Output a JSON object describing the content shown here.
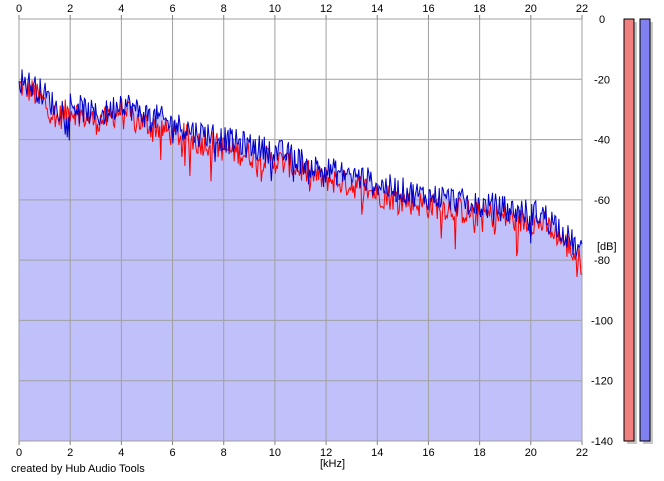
{
  "credit": "created by Hub Audio Tools",
  "chart_data": {
    "type": "area",
    "xlabel": "[kHz]",
    "ylabel": "[dB]",
    "xlim": [
      0,
      22
    ],
    "ylim": [
      -140,
      0
    ],
    "grid": true,
    "x_ticks": [
      0,
      2,
      4,
      6,
      8,
      10,
      12,
      14,
      16,
      18,
      20,
      22
    ],
    "y_ticks": [
      0,
      -20,
      -40,
      -60,
      -80,
      -100,
      -120,
      -140
    ],
    "colors": {
      "fill": "#c0c0fb",
      "left_channel": "#ff0000",
      "right_channel": "#0000cc",
      "meter_left": "#f08080",
      "meter_right": "#8080f0",
      "grid": "#a0a0a0"
    },
    "series": [
      {
        "color": "red",
        "x": [
          0,
          0.5,
          1,
          1.5,
          2,
          2.5,
          3,
          3.5,
          4,
          4.5,
          5,
          5.5,
          6,
          6.5,
          7,
          7.5,
          8,
          8.5,
          9,
          9.5,
          10,
          10.5,
          11,
          11.5,
          12,
          12.5,
          13,
          13.5,
          14,
          14.5,
          15,
          15.5,
          16,
          16.5,
          17,
          17.5,
          18,
          18.5,
          19,
          19.5,
          20,
          20.5,
          21,
          21.5,
          22
        ],
        "values": [
          -22,
          -24,
          -28,
          -33,
          -30,
          -32,
          -34,
          -33,
          -30,
          -33,
          -35,
          -36,
          -38,
          -39,
          -41,
          -41,
          -43,
          -44,
          -45,
          -46,
          -47,
          -48,
          -50,
          -52,
          -53,
          -54,
          -55,
          -56,
          -58,
          -59,
          -60,
          -61,
          -62,
          -62,
          -63,
          -64,
          -65,
          -65,
          -66,
          -67,
          -67,
          -68,
          -71,
          -76,
          -81
        ]
      },
      {
        "color": "blue",
        "x": [
          0,
          0.5,
          1,
          1.5,
          2,
          2.5,
          3,
          3.5,
          4,
          4.5,
          5,
          5.5,
          6,
          6.5,
          7,
          7.5,
          8,
          8.5,
          9,
          9.5,
          10,
          10.5,
          11,
          11.5,
          12,
          12.5,
          13,
          13.5,
          14,
          14.5,
          15,
          15.5,
          16,
          16.5,
          17,
          17.5,
          18,
          18.5,
          19,
          19.5,
          20,
          20.5,
          21,
          21.5,
          22
        ],
        "values": [
          -20,
          -22,
          -25,
          -30,
          -28,
          -30,
          -32,
          -31,
          -27,
          -30,
          -32,
          -33,
          -35,
          -36,
          -38,
          -38,
          -40,
          -41,
          -42,
          -43,
          -44,
          -45,
          -47,
          -49,
          -50,
          -51,
          -52,
          -53,
          -55,
          -56,
          -57,
          -58,
          -59,
          -59,
          -60,
          -61,
          -62,
          -62,
          -63,
          -64,
          -64,
          -65,
          -68,
          -73,
          -78
        ]
      }
    ],
    "meters": [
      {
        "color": "red",
        "level": 1.0
      },
      {
        "color": "blue",
        "level": 1.0
      }
    ]
  }
}
